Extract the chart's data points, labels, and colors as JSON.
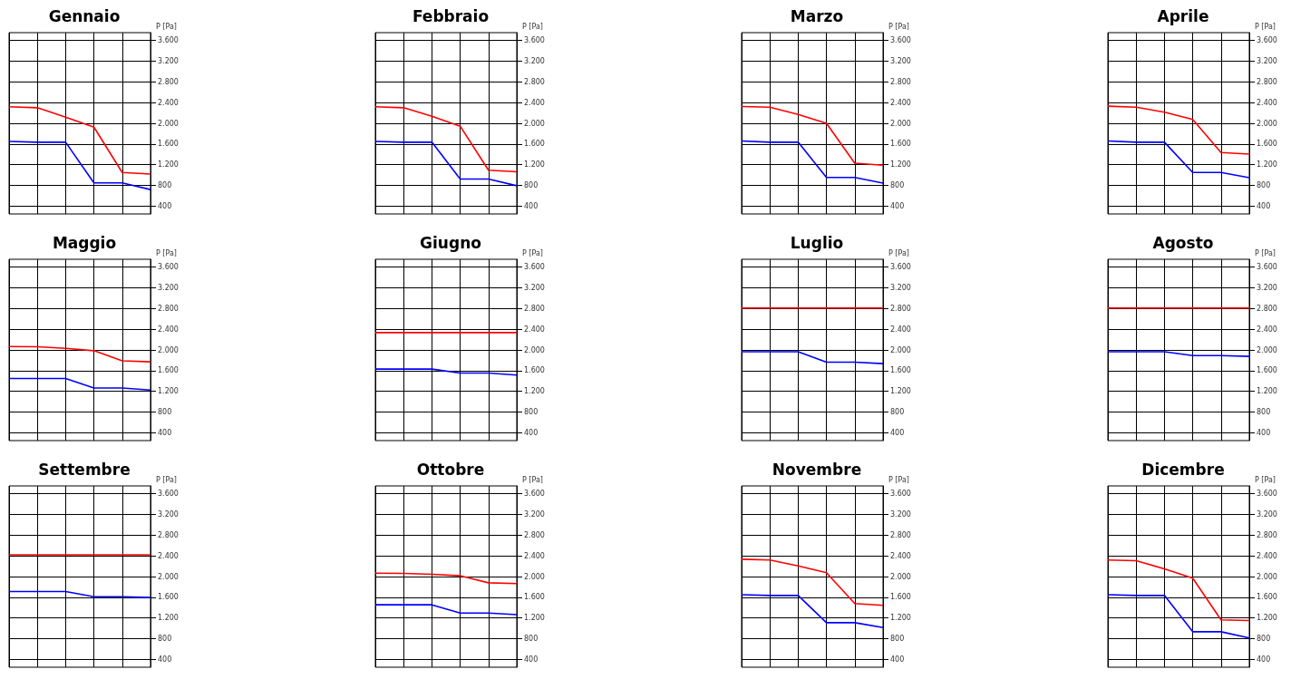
{
  "chart_data": [
    {
      "type": "line",
      "title": "Gennaio",
      "ylabel": "P [Pa]",
      "categories": [
        null,
        null,
        null,
        null,
        null,
        null
      ],
      "ylim": [
        250,
        3750
      ],
      "yticks": [
        {
          "value": 400,
          "label": "400"
        },
        {
          "value": 800,
          "label": "800"
        },
        {
          "value": 1200,
          "label": "1.200"
        },
        {
          "value": 1600,
          "label": "1.600"
        },
        {
          "value": 2000,
          "label": "2.000"
        },
        {
          "value": 2400,
          "label": "2.400"
        },
        {
          "value": 2800,
          "label": "2.800"
        },
        {
          "value": 3200,
          "label": "3.200"
        },
        {
          "value": 3600,
          "label": "3.600"
        }
      ],
      "grid": true,
      "tick_labels": "y",
      "series": [
        {
          "color": "#ff0000",
          "values": [
            2320,
            2300,
            2120,
            1925,
            1050,
            1020
          ]
        },
        {
          "color": "#0000ff",
          "values": [
            1650,
            1635,
            1635,
            850,
            850,
            720
          ]
        }
      ]
    },
    {
      "type": "line",
      "title": "Febbraio",
      "ylabel": "P [Pa]",
      "categories": [
        null,
        null,
        null,
        null,
        null,
        null
      ],
      "ylim": [
        250,
        3750
      ],
      "yticks": [
        {
          "value": 400,
          "label": "400"
        },
        {
          "value": 800,
          "label": "800"
        },
        {
          "value": 1200,
          "label": "1.200"
        },
        {
          "value": 1600,
          "label": "1.600"
        },
        {
          "value": 2000,
          "label": "2.000"
        },
        {
          "value": 2400,
          "label": "2.400"
        },
        {
          "value": 2800,
          "label": "2.800"
        },
        {
          "value": 3200,
          "label": "3.200"
        },
        {
          "value": 3600,
          "label": "3.600"
        }
      ],
      "grid": true,
      "tick_labels": "y",
      "series": [
        {
          "color": "#ff0000",
          "values": [
            2320,
            2300,
            2135,
            1945,
            1095,
            1065
          ]
        },
        {
          "color": "#0000ff",
          "values": [
            1650,
            1635,
            1635,
            925,
            925,
            795
          ]
        }
      ]
    },
    {
      "type": "line",
      "title": "Marzo",
      "ylabel": "P [Pa]",
      "categories": [
        null,
        null,
        null,
        null,
        null,
        null
      ],
      "ylim": [
        250,
        3750
      ],
      "yticks": [
        {
          "value": 400,
          "label": "400"
        },
        {
          "value": 800,
          "label": "800"
        },
        {
          "value": 1200,
          "label": "1.200"
        },
        {
          "value": 1600,
          "label": "1.600"
        },
        {
          "value": 2000,
          "label": "2.000"
        },
        {
          "value": 2400,
          "label": "2.400"
        },
        {
          "value": 2800,
          "label": "2.800"
        },
        {
          "value": 3200,
          "label": "3.200"
        },
        {
          "value": 3600,
          "label": "3.600"
        }
      ],
      "grid": true,
      "tick_labels": "y",
      "series": [
        {
          "color": "#ff0000",
          "values": [
            2325,
            2310,
            2170,
            2000,
            1230,
            1190
          ]
        },
        {
          "color": "#0000ff",
          "values": [
            1660,
            1635,
            1635,
            955,
            955,
            845
          ]
        }
      ]
    },
    {
      "type": "line",
      "title": "Aprile",
      "ylabel": "P [Pa]",
      "categories": [
        null,
        null,
        null,
        null,
        null,
        null
      ],
      "ylim": [
        250,
        3750
      ],
      "yticks": [
        {
          "value": 400,
          "label": "400"
        },
        {
          "value": 800,
          "label": "800"
        },
        {
          "value": 1200,
          "label": "1.200"
        },
        {
          "value": 1600,
          "label": "1.600"
        },
        {
          "value": 2000,
          "label": "2.000"
        },
        {
          "value": 2400,
          "label": "2.400"
        },
        {
          "value": 2800,
          "label": "2.800"
        },
        {
          "value": 3200,
          "label": "3.200"
        },
        {
          "value": 3600,
          "label": "3.600"
        }
      ],
      "grid": true,
      "tick_labels": "y",
      "series": [
        {
          "color": "#ff0000",
          "values": [
            2330,
            2310,
            2215,
            2075,
            1435,
            1405
          ]
        },
        {
          "color": "#0000ff",
          "values": [
            1660,
            1635,
            1635,
            1050,
            1050,
            950
          ]
        }
      ]
    },
    {
      "type": "line",
      "title": "Maggio",
      "ylabel": "P [Pa]",
      "categories": [
        null,
        null,
        null,
        null,
        null,
        null
      ],
      "ylim": [
        250,
        3750
      ],
      "yticks": [
        {
          "value": 400,
          "label": "400"
        },
        {
          "value": 800,
          "label": "800"
        },
        {
          "value": 1200,
          "label": "1.200"
        },
        {
          "value": 1600,
          "label": "1.600"
        },
        {
          "value": 2000,
          "label": "2.000"
        },
        {
          "value": 2400,
          "label": "2.400"
        },
        {
          "value": 2800,
          "label": "2.800"
        },
        {
          "value": 3200,
          "label": "3.200"
        },
        {
          "value": 3600,
          "label": "3.600"
        }
      ],
      "grid": true,
      "tick_labels": "y",
      "series": [
        {
          "color": "#ff0000",
          "values": [
            2065,
            2060,
            2030,
            1985,
            1790,
            1770
          ]
        },
        {
          "color": "#0000ff",
          "values": [
            1450,
            1450,
            1450,
            1265,
            1265,
            1225
          ]
        }
      ]
    },
    {
      "type": "line",
      "title": "Giugno",
      "ylabel": "P [Pa]",
      "categories": [
        null,
        null,
        null,
        null,
        null,
        null
      ],
      "ylim": [
        250,
        3750
      ],
      "yticks": [
        {
          "value": 400,
          "label": "400"
        },
        {
          "value": 800,
          "label": "800"
        },
        {
          "value": 1200,
          "label": "1.200"
        },
        {
          "value": 1600,
          "label": "1.600"
        },
        {
          "value": 2000,
          "label": "2.000"
        },
        {
          "value": 2400,
          "label": "2.400"
        },
        {
          "value": 2800,
          "label": "2.800"
        },
        {
          "value": 3200,
          "label": "3.200"
        },
        {
          "value": 3600,
          "label": "3.600"
        }
      ],
      "grid": true,
      "tick_labels": "y",
      "series": [
        {
          "color": "#ff0000",
          "values": [
            2335,
            2335,
            2335,
            2335,
            2335,
            2335
          ]
        },
        {
          "color": "#0000ff",
          "values": [
            1630,
            1630,
            1630,
            1555,
            1555,
            1515
          ]
        }
      ]
    },
    {
      "type": "line",
      "title": "Luglio",
      "ylabel": "P [Pa]",
      "categories": [
        null,
        null,
        null,
        null,
        null,
        null
      ],
      "ylim": [
        250,
        3750
      ],
      "yticks": [
        {
          "value": 400,
          "label": "400"
        },
        {
          "value": 800,
          "label": "800"
        },
        {
          "value": 1200,
          "label": "1.200"
        },
        {
          "value": 1600,
          "label": "1.600"
        },
        {
          "value": 2000,
          "label": "2.000"
        },
        {
          "value": 2400,
          "label": "2.400"
        },
        {
          "value": 2800,
          "label": "2.800"
        },
        {
          "value": 3200,
          "label": "3.200"
        },
        {
          "value": 3600,
          "label": "3.600"
        }
      ],
      "grid": true,
      "tick_labels": "y",
      "series": [
        {
          "color": "#ff0000",
          "values": [
            2810,
            2810,
            2810,
            2810,
            2810,
            2810
          ]
        },
        {
          "color": "#0000ff",
          "values": [
            1965,
            1965,
            1965,
            1765,
            1765,
            1735
          ]
        }
      ]
    },
    {
      "type": "line",
      "title": "Agosto",
      "ylabel": "P [Pa]",
      "categories": [
        null,
        null,
        null,
        null,
        null,
        null
      ],
      "ylim": [
        250,
        3750
      ],
      "yticks": [
        {
          "value": 400,
          "label": "400"
        },
        {
          "value": 800,
          "label": "800"
        },
        {
          "value": 1200,
          "label": "1.200"
        },
        {
          "value": 1600,
          "label": "1.600"
        },
        {
          "value": 2000,
          "label": "2.000"
        },
        {
          "value": 2400,
          "label": "2.400"
        },
        {
          "value": 2800,
          "label": "2.800"
        },
        {
          "value": 3200,
          "label": "3.200"
        },
        {
          "value": 3600,
          "label": "3.600"
        }
      ],
      "grid": true,
      "tick_labels": "y",
      "series": [
        {
          "color": "#ff0000",
          "values": [
            2810,
            2810,
            2810,
            2810,
            2810,
            2810
          ]
        },
        {
          "color": "#0000ff",
          "values": [
            1965,
            1965,
            1965,
            1890,
            1890,
            1875
          ]
        }
      ]
    },
    {
      "type": "line",
      "title": "Settembre",
      "ylabel": "P [Pa]",
      "categories": [
        null,
        null,
        null,
        null,
        null,
        null
      ],
      "ylim": [
        250,
        3750
      ],
      "yticks": [
        {
          "value": 400,
          "label": "400"
        },
        {
          "value": 800,
          "label": "800"
        },
        {
          "value": 1200,
          "label": "1.200"
        },
        {
          "value": 1600,
          "label": "1.600"
        },
        {
          "value": 2000,
          "label": "2.000"
        },
        {
          "value": 2400,
          "label": "2.400"
        },
        {
          "value": 2800,
          "label": "2.800"
        },
        {
          "value": 3200,
          "label": "3.200"
        },
        {
          "value": 3600,
          "label": "3.600"
        }
      ],
      "grid": true,
      "tick_labels": "y",
      "series": [
        {
          "color": "#ff0000",
          "values": [
            2420,
            2420,
            2420,
            2420,
            2420,
            2420
          ]
        },
        {
          "color": "#0000ff",
          "values": [
            1710,
            1710,
            1710,
            1610,
            1610,
            1595
          ]
        }
      ]
    },
    {
      "type": "line",
      "title": "Ottobre",
      "ylabel": "P [Pa]",
      "categories": [
        null,
        null,
        null,
        null,
        null,
        null
      ],
      "ylim": [
        250,
        3750
      ],
      "yticks": [
        {
          "value": 400,
          "label": "400"
        },
        {
          "value": 800,
          "label": "800"
        },
        {
          "value": 1200,
          "label": "1.200"
        },
        {
          "value": 1600,
          "label": "1.600"
        },
        {
          "value": 2000,
          "label": "2.000"
        },
        {
          "value": 2400,
          "label": "2.400"
        },
        {
          "value": 2800,
          "label": "2.800"
        },
        {
          "value": 3200,
          "label": "3.200"
        },
        {
          "value": 3600,
          "label": "3.600"
        }
      ],
      "grid": true,
      "tick_labels": "y",
      "series": [
        {
          "color": "#ff0000",
          "values": [
            2065,
            2060,
            2045,
            2015,
            1880,
            1865
          ]
        },
        {
          "color": "#0000ff",
          "values": [
            1455,
            1455,
            1455,
            1295,
            1295,
            1265
          ]
        }
      ]
    },
    {
      "type": "line",
      "title": "Novembre",
      "ylabel": "P [Pa]",
      "categories": [
        null,
        null,
        null,
        null,
        null,
        null
      ],
      "ylim": [
        250,
        3750
      ],
      "yticks": [
        {
          "value": 400,
          "label": "400"
        },
        {
          "value": 800,
          "label": "800"
        },
        {
          "value": 1200,
          "label": "1.200"
        },
        {
          "value": 1600,
          "label": "1.600"
        },
        {
          "value": 2000,
          "label": "2.000"
        },
        {
          "value": 2400,
          "label": "2.400"
        },
        {
          "value": 2800,
          "label": "2.800"
        },
        {
          "value": 3200,
          "label": "3.200"
        },
        {
          "value": 3600,
          "label": "3.600"
        }
      ],
      "grid": true,
      "tick_labels": "y",
      "series": [
        {
          "color": "#ff0000",
          "values": [
            2335,
            2320,
            2205,
            2075,
            1480,
            1445
          ]
        },
        {
          "color": "#0000ff",
          "values": [
            1650,
            1635,
            1635,
            1110,
            1110,
            1015
          ]
        }
      ]
    },
    {
      "type": "line",
      "title": "Dicembre",
      "ylabel": "P [Pa]",
      "categories": [
        null,
        null,
        null,
        null,
        null,
        null
      ],
      "ylim": [
        250,
        3750
      ],
      "yticks": [
        {
          "value": 400,
          "label": "400"
        },
        {
          "value": 800,
          "label": "800"
        },
        {
          "value": 1200,
          "label": "1.200"
        },
        {
          "value": 1600,
          "label": "1.600"
        },
        {
          "value": 2000,
          "label": "2.000"
        },
        {
          "value": 2400,
          "label": "2.400"
        },
        {
          "value": 2800,
          "label": "2.800"
        },
        {
          "value": 3200,
          "label": "3.200"
        },
        {
          "value": 3600,
          "label": "3.600"
        }
      ],
      "grid": true,
      "tick_labels": "y",
      "series": [
        {
          "color": "#ff0000",
          "values": [
            2320,
            2305,
            2150,
            1970,
            1165,
            1150
          ]
        },
        {
          "color": "#0000ff",
          "values": [
            1650,
            1635,
            1635,
            935,
            935,
            815
          ]
        }
      ]
    }
  ]
}
